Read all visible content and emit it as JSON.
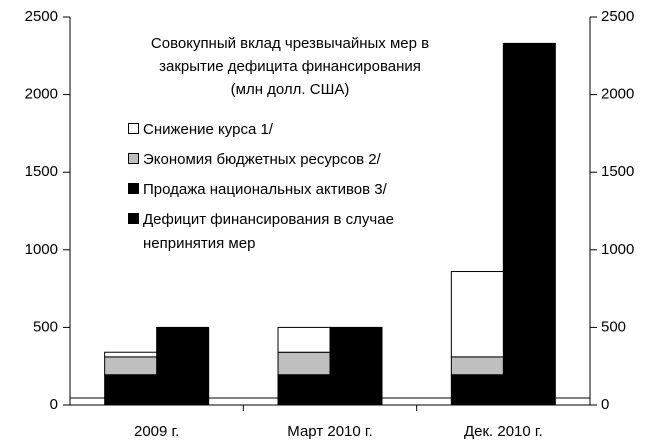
{
  "chart_data": {
    "type": "bar",
    "stacked": true,
    "title": [
      "Совокупный вклад чрезвычайных мер в",
      "закрытие дефицита финансирования",
      "(млн долл. США)"
    ],
    "categories": [
      "2009 г.",
      "Март 2010 г.",
      "Дек. 2010 г."
    ],
    "series": [
      {
        "name": "Снижение курса 1/",
        "color": "#ffffff",
        "values": [
          30,
          160,
          550
        ],
        "stack": "a"
      },
      {
        "name": "Экономия бюджетных ресурсов 2/",
        "color": "#bfbfbf",
        "values": [
          115,
          145,
          115
        ],
        "stack": "a"
      },
      {
        "name": "Продажа национальных активов 3/",
        "color": "#000000",
        "values": [
          195,
          195,
          195
        ],
        "stack": "a"
      },
      {
        "name": "Дефицит финансирования в случае непринятия мер",
        "color": "#000000",
        "values": [
          500,
          500,
          2330
        ],
        "stack": "b"
      }
    ],
    "ylim": [
      0,
      2500
    ],
    "yticks": [
      0,
      500,
      1000,
      1500,
      2000,
      2500
    ],
    "y2lim": [
      0,
      2500
    ],
    "y2ticks": [
      0,
      500,
      1000,
      1500,
      2000,
      2500
    ]
  }
}
